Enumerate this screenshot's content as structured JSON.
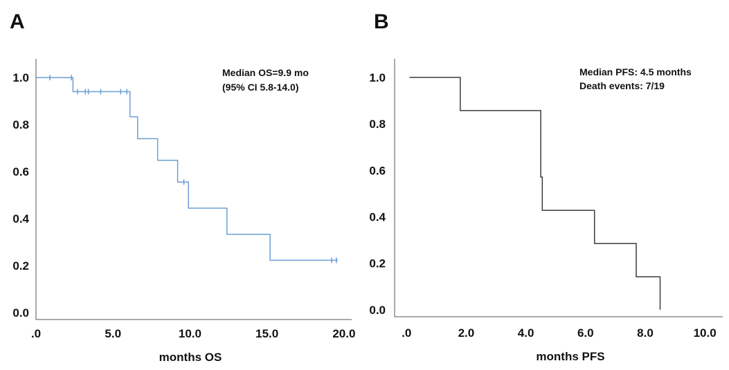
{
  "colors": {
    "panel_a_line": "#6a9fd4",
    "panel_b_line": "#3a3a3a",
    "axis": "#555555"
  },
  "chart_data": [
    {
      "type": "line",
      "panel_label": "A",
      "xlabel": "months OS",
      "ylabel": "",
      "xlim": [
        0,
        20.5
      ],
      "ylim": [
        -0.03,
        1.08
      ],
      "x_ticks": [
        0,
        5,
        10,
        15,
        20
      ],
      "x_tick_labels": [
        ".0",
        "5.0",
        "10.0",
        "15.0",
        "20.0"
      ],
      "y_ticks": [
        0,
        0.2,
        0.4,
        0.6,
        0.8,
        1.0
      ],
      "y_tick_labels": [
        "0.0",
        "0.2",
        "0.4",
        "0.6",
        "0.8",
        "1.0"
      ],
      "annotations": [
        "Median OS=9.9 mo",
        "(95% CI 5.8-14.0)"
      ],
      "series": [
        {
          "step_points": [
            [
              0,
              1.0
            ],
            [
              2.4,
              1.0
            ],
            [
              2.4,
              0.94
            ],
            [
              6.1,
              0.94
            ],
            [
              6.1,
              0.833
            ],
            [
              6.6,
              0.833
            ],
            [
              6.6,
              0.74
            ],
            [
              7.9,
              0.74
            ],
            [
              7.9,
              0.648
            ],
            [
              9.2,
              0.648
            ],
            [
              9.2,
              0.555
            ],
            [
              9.9,
              0.555
            ],
            [
              9.9,
              0.444
            ],
            [
              12.4,
              0.444
            ],
            [
              12.4,
              0.333
            ],
            [
              15.2,
              0.333
            ],
            [
              15.2,
              0.222
            ],
            [
              19.6,
              0.222
            ]
          ],
          "censored": [
            [
              0.9,
              1.0
            ],
            [
              2.3,
              1.0
            ],
            [
              2.7,
              0.94
            ],
            [
              3.2,
              0.94
            ],
            [
              3.4,
              0.94
            ],
            [
              4.2,
              0.94
            ],
            [
              5.5,
              0.94
            ],
            [
              5.9,
              0.94
            ],
            [
              9.6,
              0.555
            ],
            [
              19.2,
              0.222
            ],
            [
              19.5,
              0.222
            ]
          ]
        }
      ]
    },
    {
      "type": "line",
      "panel_label": "B",
      "xlabel": "months PFS",
      "ylabel": "",
      "xlim": [
        -0.4,
        10.6
      ],
      "ylim": [
        -0.03,
        1.08
      ],
      "x_ticks": [
        0,
        2,
        4,
        6,
        8,
        10
      ],
      "x_tick_labels": [
        ".0",
        "2.0",
        "4.0",
        "6.0",
        "8.0",
        "10.0"
      ],
      "y_ticks": [
        0,
        0.2,
        0.4,
        0.6,
        0.8,
        1.0
      ],
      "y_tick_labels": [
        "0.0",
        "0.2",
        "0.4",
        "0.6",
        "0.8",
        "1.0"
      ],
      "annotations": [
        "Median PFS: 4.5 months",
        "Death events: 7/19"
      ],
      "series": [
        {
          "step_points": [
            [
              0.1,
              1.0
            ],
            [
              1.8,
              1.0
            ],
            [
              1.8,
              0.857
            ],
            [
              4.5,
              0.857
            ],
            [
              4.5,
              0.571
            ],
            [
              4.55,
              0.571
            ],
            [
              4.55,
              0.428
            ],
            [
              6.3,
              0.428
            ],
            [
              6.3,
              0.285
            ],
            [
              7.7,
              0.285
            ],
            [
              7.7,
              0.142
            ],
            [
              8.5,
              0.142
            ],
            [
              8.5,
              0.0
            ]
          ],
          "censored": []
        }
      ]
    }
  ]
}
